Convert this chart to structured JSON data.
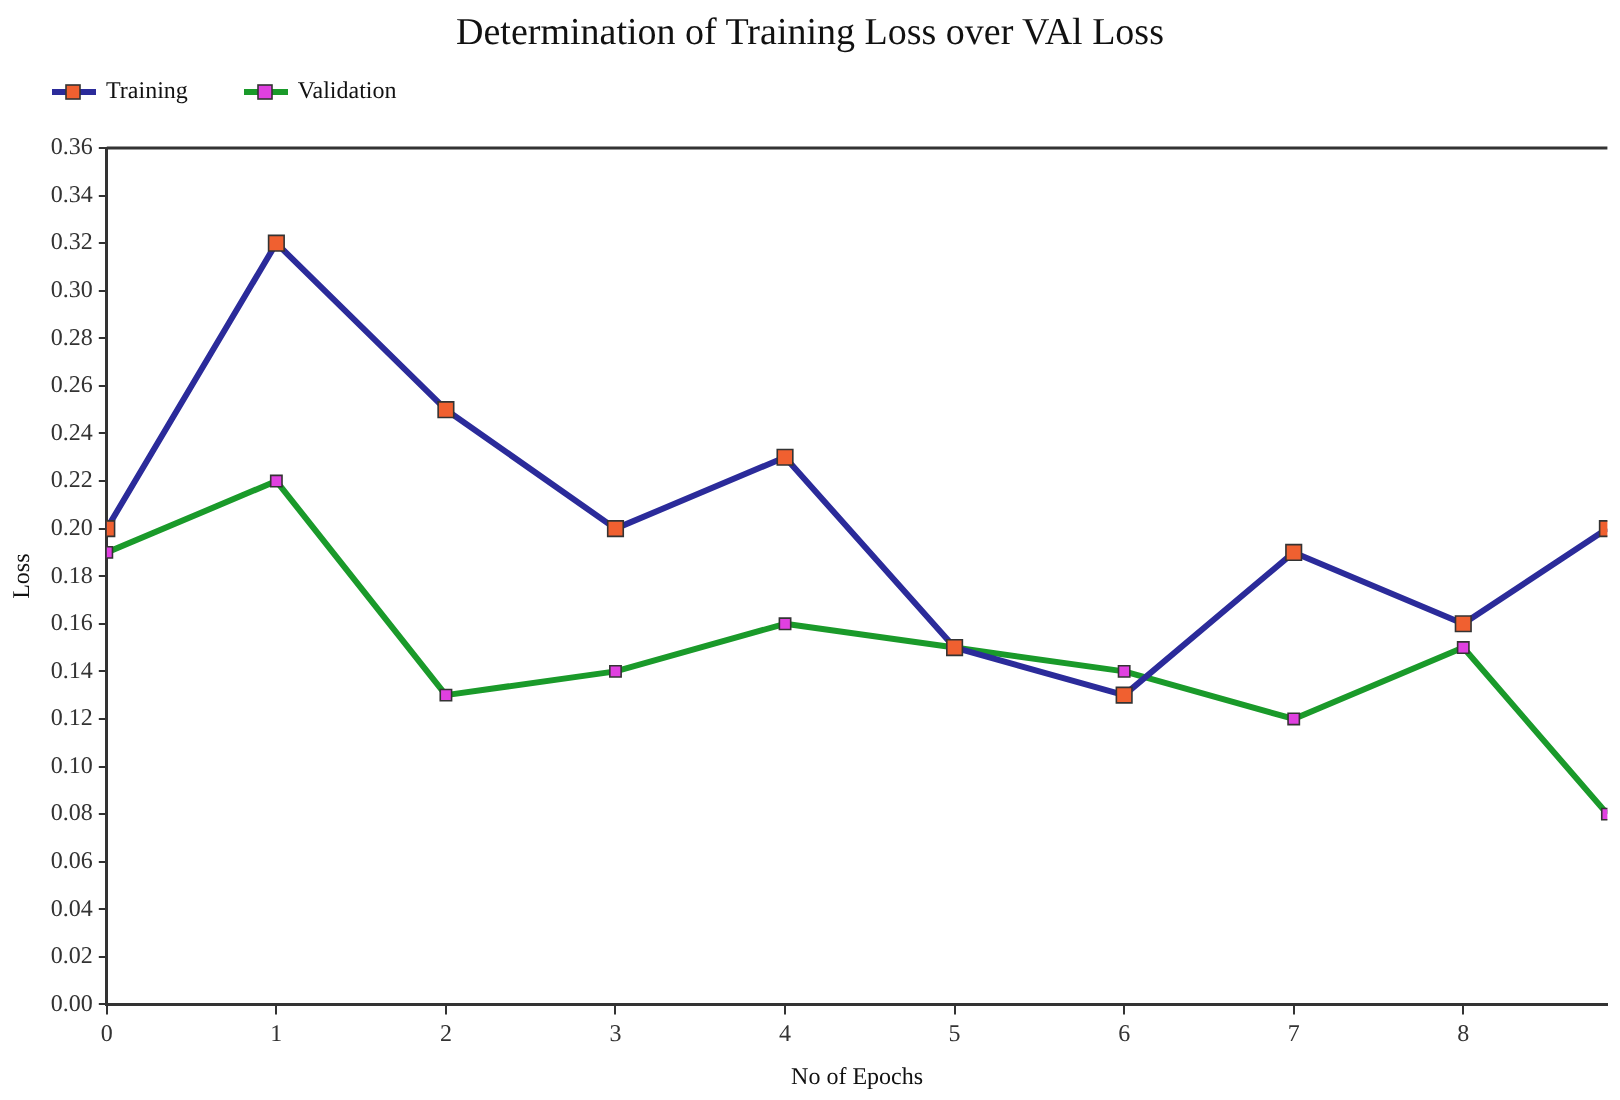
{
  "chart_data": {
    "type": "line",
    "title": "Determination of Training Loss over VAl Loss",
    "xlabel": "No of Epochs",
    "ylabel": "Loss",
    "x": [
      0,
      1,
      2,
      3,
      4,
      5,
      6,
      7,
      8,
      8.85
    ],
    "series": [
      {
        "name": "Training",
        "color": "#2b2b9a",
        "values": [
          0.2,
          0.32,
          0.25,
          0.2,
          0.23,
          0.15,
          0.13,
          0.19,
          0.16,
          0.2
        ]
      },
      {
        "name": "Validation",
        "color": "#1a9a2a",
        "values": [
          0.19,
          0.22,
          0.13,
          0.14,
          0.16,
          0.15,
          0.14,
          0.12,
          0.15,
          0.08
        ]
      }
    ],
    "xlim": [
      0,
      8.85
    ],
    "xticks": [
      0,
      1,
      2,
      3,
      4,
      5,
      6,
      7,
      8
    ],
    "ylim": [
      0,
      0.36
    ],
    "yticks": [
      {
        "value": 0,
        "label": "0.00"
      },
      0.02,
      0.04,
      0.06,
      0.08,
      {
        "value": 0.1,
        "label": "0.10"
      },
      0.12,
      0.14,
      0.16,
      0.18,
      {
        "value": 0.2,
        "label": "0.20"
      },
      0.22,
      0.24,
      0.26,
      0.28,
      {
        "value": 0.3,
        "label": "0.30"
      },
      0.32,
      0.34,
      0.36
    ],
    "grid": false,
    "legend": "top left",
    "marker": "square",
    "line_style": "solid"
  }
}
